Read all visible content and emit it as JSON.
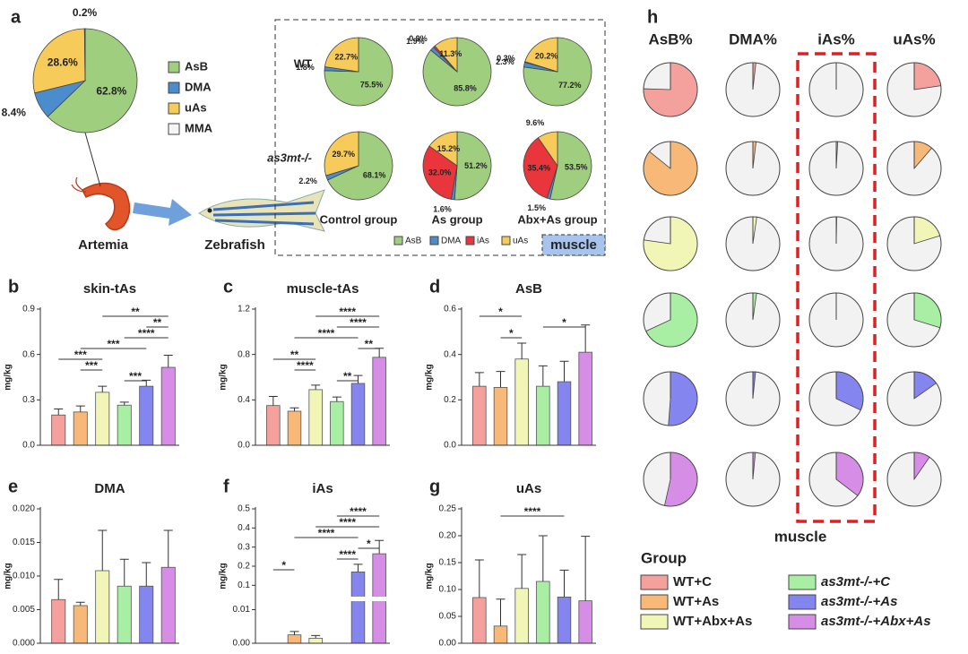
{
  "groups": {
    "title": "Group",
    "names": [
      "WT+C",
      "WT+As",
      "WT+Abx+As",
      "as3mt-/-+C",
      "as3mt-/-+As",
      "as3mt-/-+Abx+As"
    ],
    "colors": [
      "#f4a09c",
      "#f7b878",
      "#f1f5b5",
      "#a8efa4",
      "#8585ef",
      "#d68de6"
    ]
  },
  "chart_data": [
    {
      "type": "pie",
      "panel": "a",
      "categories": [
        "AsB",
        "DMA",
        "uAs",
        "MMA"
      ],
      "values": [
        62.8,
        8.4,
        28.6,
        0.2
      ],
      "value_labels": [
        "62.8%",
        "8.4%",
        "28.6%",
        "0.2%"
      ],
      "colors": [
        "#9fce7f",
        "#4a8ccc",
        "#f6cb5a",
        "#f5f5f5"
      ],
      "source": "Artemia",
      "target": "Zebrafish"
    },
    {
      "type": "pie_grid",
      "title": "muscle",
      "categories": [
        "AsB",
        "DMA",
        "iAs",
        "uAs"
      ],
      "colors": [
        "#9fce7f",
        "#4a8ccc",
        "#e8363c",
        "#f6cb5a"
      ],
      "rows": [
        "WT",
        "as3mt-/-"
      ],
      "columns": [
        "Control group",
        "As group",
        "Abx+As group"
      ],
      "values": [
        [
          [
            75.5,
            1.8,
            null,
            22.7
          ],
          [
            85.8,
            1.9,
            0.9,
            11.3
          ],
          [
            77.2,
            2.3,
            0.3,
            20.2
          ]
        ],
        [
          [
            68.1,
            2.2,
            null,
            29.7
          ],
          [
            51.2,
            1.6,
            32.0,
            15.2
          ],
          [
            53.5,
            1.5,
            35.4,
            9.6
          ]
        ]
      ],
      "value_labels": [
        [
          [
            "75.5%",
            "1.8%",
            null,
            "22.7%"
          ],
          [
            "85.8%",
            "1.9%",
            "0.9%",
            "11.3%"
          ],
          [
            "77.2%",
            "2.3%",
            "0.3%",
            "20.2%"
          ]
        ],
        [
          [
            "68.1%",
            "2.2%",
            null,
            "29.7%"
          ],
          [
            "51.2%",
            "1.6%",
            "32.0%",
            "15.2%"
          ],
          [
            "53.5%",
            "1.5%",
            "35.4%",
            "9.6%"
          ]
        ]
      ]
    },
    {
      "type": "bar",
      "panel": "b",
      "title": "skin-tAs",
      "ylabel": "mg/kg",
      "values": [
        0.2,
        0.22,
        0.35,
        0.265,
        0.39,
        0.515
      ],
      "errors": [
        0.04,
        0.04,
        0.04,
        0.02,
        0.04,
        0.08
      ],
      "ylim": [
        0,
        0.9
      ],
      "yticks": [
        {
          "value": 0,
          "label": "0.0"
        },
        0.3,
        0.6,
        0.9
      ],
      "significance": [
        {
          "pair": [
            2,
            5
          ],
          "label": "**",
          "color": "#c0392b"
        },
        {
          "pair": [
            4,
            5
          ],
          "label": "**",
          "color": "#222"
        },
        {
          "pair": [
            3,
            5
          ],
          "label": "****",
          "color": "#222"
        },
        {
          "pair": [
            1,
            4
          ],
          "label": "***",
          "color": "#c0392b"
        },
        {
          "pair": [
            0,
            2
          ],
          "label": "***",
          "color": "#222"
        },
        {
          "pair": [
            1,
            2
          ],
          "label": "***",
          "color": "#222"
        },
        {
          "pair": [
            3,
            4
          ],
          "label": "***",
          "color": "#222"
        }
      ]
    },
    {
      "type": "bar",
      "panel": "c",
      "title": "muscle-tAs",
      "ylabel": "mg/kg",
      "values": [
        0.35,
        0.3,
        0.49,
        0.385,
        0.545,
        0.775
      ],
      "errors": [
        0.08,
        0.03,
        0.04,
        0.04,
        0.07,
        0.08
      ],
      "ylim": [
        0,
        1.2
      ],
      "yticks": [
        {
          "value": 0,
          "label": "0.0"
        },
        0.4,
        0.8,
        1.2
      ],
      "significance": [
        {
          "pair": [
            2,
            5
          ],
          "label": "****",
          "color": "#c0392b"
        },
        {
          "pair": [
            3,
            5
          ],
          "label": "****",
          "color": "#222"
        },
        {
          "pair": [
            1,
            4
          ],
          "label": "****",
          "color": "#c0392b"
        },
        {
          "pair": [
            4,
            5
          ],
          "label": "**",
          "color": "#222"
        },
        {
          "pair": [
            0,
            2
          ],
          "label": "**",
          "color": "#222"
        },
        {
          "pair": [
            1,
            2
          ],
          "label": "****",
          "color": "#222"
        },
        {
          "pair": [
            3,
            4
          ],
          "label": "**",
          "color": "#222"
        }
      ]
    },
    {
      "type": "bar",
      "panel": "d",
      "title": "AsB",
      "ylabel": "mg/kg",
      "values": [
        0.26,
        0.255,
        0.38,
        0.26,
        0.28,
        0.41
      ],
      "errors": [
        0.06,
        0.07,
        0.07,
        0.09,
        0.09,
        0.12
      ],
      "ylim": [
        0,
        0.6
      ],
      "yticks": [
        {
          "value": 0,
          "label": "0.0"
        },
        0.2,
        0.4,
        0.6
      ],
      "significance": [
        {
          "pair": [
            0,
            2
          ],
          "label": "*",
          "color": "#222"
        },
        {
          "pair": [
            3,
            5
          ],
          "label": "*",
          "color": "#222"
        },
        {
          "pair": [
            1,
            2
          ],
          "label": "*",
          "color": "#222"
        }
      ]
    },
    {
      "type": "bar",
      "panel": "e",
      "title": "DMA",
      "ylabel": "mg/kg",
      "values": [
        0.0065,
        0.0056,
        0.0108,
        0.0085,
        0.0085,
        0.0113
      ],
      "errors": [
        0.003,
        0.0005,
        0.006,
        0.004,
        0.0035,
        0.0055
      ],
      "ylim": [
        0,
        0.02
      ],
      "yticks": [
        {
          "value": 0,
          "label": "0.000"
        },
        0.005,
        {
          "value": 0.01,
          "label": "0.010"
        },
        0.015,
        {
          "value": 0.02,
          "label": "0.020"
        }
      ],
      "significance": []
    },
    {
      "type": "bar",
      "panel": "f",
      "title": "iAs",
      "ylabel": "mg/kg",
      "values": [
        0,
        0.0025,
        0.0015,
        0,
        0.17,
        0.265
      ],
      "errors": [
        0,
        0.001,
        0.0008,
        0,
        0.04,
        0.07
      ],
      "ylim": [
        0,
        0.5
      ],
      "ybreak": [
        0.012,
        0.05
      ],
      "yticks": [
        {
          "value": 0,
          "label": "0.00"
        },
        0.01,
        0.1,
        0.2,
        0.3,
        0.4,
        0.5
      ],
      "significance": [
        {
          "pair": [
            3,
            5
          ],
          "label": "****",
          "color": "#222"
        },
        {
          "pair": [
            2,
            5
          ],
          "label": "****",
          "color": "#c0392b"
        },
        {
          "pair": [
            1,
            4
          ],
          "label": "****",
          "color": "#c0392b"
        },
        {
          "pair": [
            4,
            5
          ],
          "label": "*",
          "color": "#222"
        },
        {
          "pair": [
            3,
            4
          ],
          "label": "****",
          "color": "#222"
        },
        {
          "pair": [
            0,
            1
          ],
          "label": "*",
          "color": "#222"
        }
      ]
    },
    {
      "type": "bar",
      "panel": "g",
      "title": "uAs",
      "ylabel": "mg/kg",
      "values": [
        0.085,
        0.032,
        0.102,
        0.115,
        0.086,
        0.079
      ],
      "errors": [
        0.07,
        0.05,
        0.063,
        0.085,
        0.05,
        0.12
      ],
      "ylim": [
        0,
        0.25
      ],
      "yticks": [
        {
          "value": 0,
          "label": "0.00"
        },
        0.05,
        {
          "value": 0.1,
          "label": "0.10"
        },
        0.15,
        {
          "value": 0.2,
          "label": "0.20"
        },
        0.25
      ],
      "significance": [
        {
          "pair": [
            1,
            4
          ],
          "label": "****",
          "color": "#c0392b"
        }
      ]
    },
    {
      "type": "pie_matrix",
      "panel": "h",
      "title": "muscle",
      "columns": [
        "AsB%",
        "DMA%",
        "iAs%",
        "uAs%"
      ],
      "highlight_column": 2,
      "values": [
        [
          75.5,
          1.8,
          0,
          22.7
        ],
        [
          85.8,
          1.9,
          0.9,
          11.3
        ],
        [
          77.2,
          2.3,
          0.3,
          20.2
        ],
        [
          68.1,
          2.2,
          0,
          29.7
        ],
        [
          51.2,
          1.6,
          32.0,
          15.2
        ],
        [
          53.5,
          1.5,
          35.4,
          9.6
        ]
      ]
    }
  ]
}
